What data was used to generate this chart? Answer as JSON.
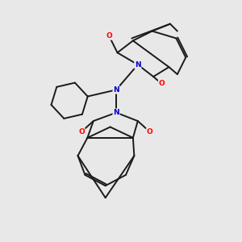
{
  "background_color": "#e8e8e8",
  "bond_color": "#1a1a1a",
  "nitrogen_color": "#0000cd",
  "oxygen_color": "#ff0000",
  "line_width": 1.4,
  "figsize": [
    3.0,
    3.0
  ],
  "dpi": 100,
  "xlim": [
    0,
    10
  ],
  "ylim": [
    0,
    10
  ]
}
